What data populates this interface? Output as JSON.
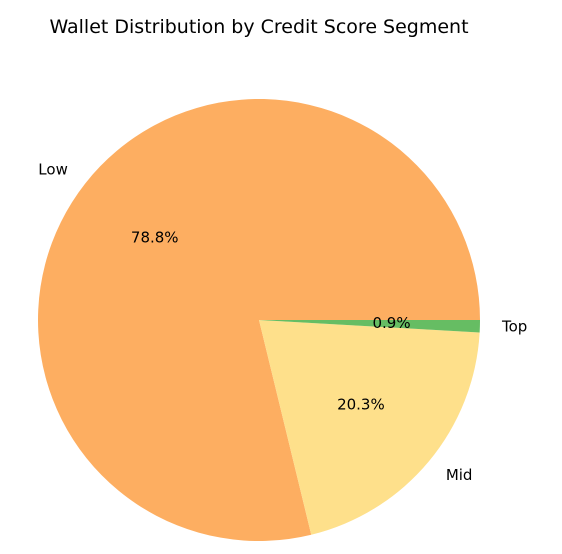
{
  "chart_data": {
    "type": "pie",
    "title": "Wallet Distribution by Credit Score Segment",
    "slices": [
      {
        "label": "Low",
        "value": 78.8,
        "pct_label": "78.8%",
        "color": "#FDAE61"
      },
      {
        "label": "Mid",
        "value": 20.3,
        "pct_label": "20.3%",
        "color": "#FEE08B"
      },
      {
        "label": "Top",
        "value": 0.9,
        "pct_label": "0.9%",
        "color": "#66BD63"
      }
    ]
  }
}
